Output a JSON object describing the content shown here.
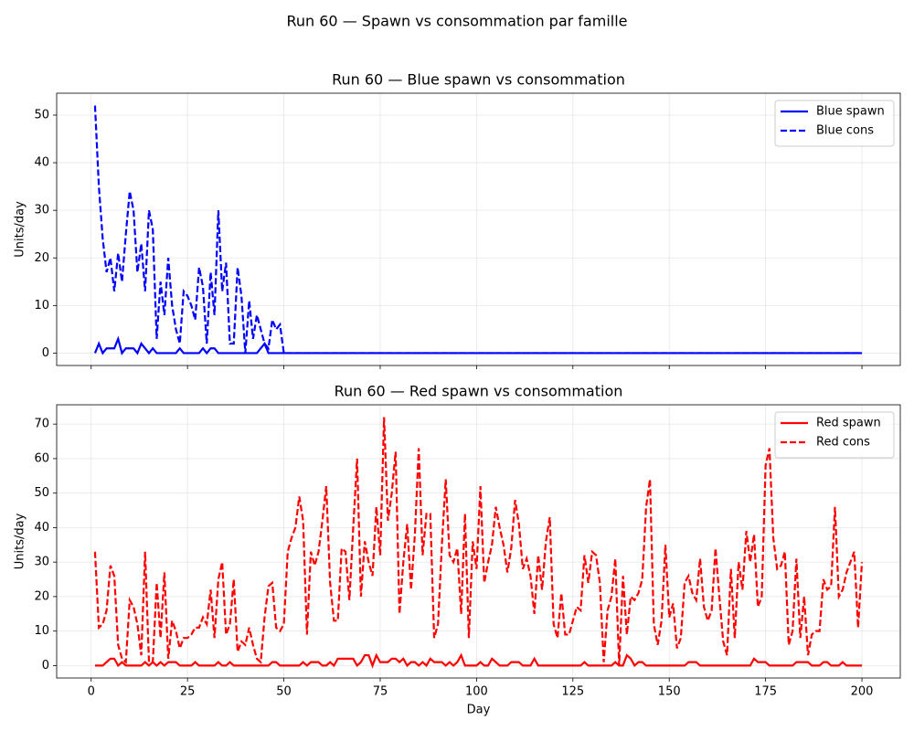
{
  "suptitle": "Run 60 — Spawn vs consommation par famille",
  "chart_data": [
    {
      "type": "line",
      "title": "Run 60 — Blue spawn vs consommation",
      "ylabel": "Units/day",
      "show_xtick_labels": false,
      "x": [
        1,
        2,
        3,
        4,
        5,
        6,
        7,
        8,
        9,
        10,
        11,
        12,
        13,
        14,
        15,
        16,
        17,
        18,
        19,
        20,
        21,
        22,
        23,
        24,
        25,
        26,
        27,
        28,
        29,
        30,
        31,
        32,
        33,
        34,
        35,
        36,
        37,
        38,
        39,
        40,
        41,
        42,
        43,
        44,
        45,
        46,
        47,
        48,
        49,
        50,
        51,
        52,
        53,
        54,
        55,
        56,
        57,
        58,
        59,
        60,
        61,
        62,
        63,
        64,
        65,
        66,
        67,
        68,
        69,
        70,
        71,
        72,
        73,
        74,
        75,
        76,
        77,
        78,
        79,
        80,
        81,
        82,
        83,
        84,
        85,
        86,
        87,
        88,
        89,
        90,
        91,
        92,
        93,
        94,
        95,
        96,
        97,
        98,
        99,
        100,
        101,
        102,
        103,
        104,
        105,
        106,
        107,
        108,
        109,
        110,
        111,
        112,
        113,
        114,
        115,
        116,
        117,
        118,
        119,
        120,
        121,
        122,
        123,
        124,
        125,
        126,
        127,
        128,
        129,
        130,
        131,
        132,
        133,
        134,
        135,
        136,
        137,
        138,
        139,
        140,
        141,
        142,
        143,
        144,
        145,
        146,
        147,
        148,
        149,
        150,
        151,
        152,
        153,
        154,
        155,
        156,
        157,
        158,
        159,
        160,
        161,
        162,
        163,
        164,
        165,
        166,
        167,
        168,
        169,
        170,
        171,
        172,
        173,
        174,
        175,
        176,
        177,
        178,
        179,
        180,
        181,
        182,
        183,
        184,
        185,
        186,
        187,
        188,
        189,
        190,
        191,
        192,
        193,
        194,
        195,
        196,
        197,
        198,
        199,
        200
      ],
      "series": [
        {
          "name": "Blue spawn",
          "color": "#0000ff",
          "linestyle": "solid",
          "values": [
            0,
            2,
            0,
            1,
            1,
            1,
            3,
            0,
            1,
            1,
            1,
            0,
            2,
            1,
            0,
            1,
            0,
            0,
            0,
            0,
            0,
            0,
            1,
            0,
            0,
            0,
            0,
            0,
            1,
            0,
            1,
            1,
            0,
            0,
            0,
            0,
            0,
            0,
            0,
            0,
            0,
            0,
            0,
            1,
            2,
            0,
            0,
            0,
            0,
            0,
            0,
            0,
            0,
            0,
            0,
            0,
            0,
            0,
            0,
            0,
            0,
            0,
            0,
            0,
            0,
            0,
            0,
            0,
            0,
            0,
            0,
            0,
            0,
            0,
            0,
            0,
            0,
            0,
            0,
            0,
            0,
            0,
            0,
            0,
            0,
            0,
            0,
            0,
            0,
            0,
            0,
            0,
            0,
            0,
            0,
            0,
            0,
            0,
            0,
            0,
            0,
            0,
            0,
            0,
            0,
            0,
            0,
            0,
            0,
            0,
            0,
            0,
            0,
            0,
            0,
            0,
            0,
            0,
            0,
            0,
            0,
            0,
            0,
            0,
            0,
            0,
            0,
            0,
            0,
            0,
            0,
            0,
            0,
            0,
            0,
            0,
            0,
            0,
            0,
            0,
            0,
            0,
            0,
            0,
            0,
            0,
            0,
            0,
            0,
            0,
            0,
            0,
            0,
            0,
            0,
            0,
            0,
            0,
            0,
            0,
            0,
            0,
            0,
            0,
            0,
            0,
            0,
            0,
            0,
            0,
            0,
            0,
            0,
            0,
            0,
            0,
            0,
            0,
            0,
            0,
            0,
            0,
            0,
            0,
            0,
            0,
            0,
            0,
            0,
            0,
            0,
            0,
            0,
            0,
            0,
            0,
            0,
            0,
            0,
            0
          ]
        },
        {
          "name": "Blue cons",
          "color": "#0000ff",
          "linestyle": "dashed",
          "values": [
            52,
            35,
            24,
            17,
            20,
            13,
            21,
            15,
            25,
            34,
            30,
            17,
            23,
            13,
            30,
            26,
            3,
            15,
            8,
            20,
            10,
            5,
            2,
            13,
            12,
            10,
            7,
            18,
            14,
            2,
            17,
            8,
            30,
            13,
            19,
            2,
            2,
            18,
            12,
            0,
            11,
            3,
            8,
            5,
            2,
            1,
            7,
            5,
            6,
            0,
            0,
            0,
            0,
            0,
            0,
            0,
            0,
            0,
            0,
            0,
            0,
            0,
            0,
            0,
            0,
            0,
            0,
            0,
            0,
            0,
            0,
            0,
            0,
            0,
            0,
            0,
            0,
            0,
            0,
            0,
            0,
            0,
            0,
            0,
            0,
            0,
            0,
            0,
            0,
            0,
            0,
            0,
            0,
            0,
            0,
            0,
            0,
            0,
            0,
            0,
            0,
            0,
            0,
            0,
            0,
            0,
            0,
            0,
            0,
            0,
            0,
            0,
            0,
            0,
            0,
            0,
            0,
            0,
            0,
            0,
            0,
            0,
            0,
            0,
            0,
            0,
            0,
            0,
            0,
            0,
            0,
            0,
            0,
            0,
            0,
            0,
            0,
            0,
            0,
            0,
            0,
            0,
            0,
            0,
            0,
            0,
            0,
            0,
            0,
            0,
            0,
            0,
            0,
            0,
            0,
            0,
            0,
            0,
            0,
            0,
            0,
            0,
            0,
            0,
            0,
            0,
            0,
            0,
            0,
            0,
            0,
            0,
            0,
            0,
            0,
            0,
            0,
            0,
            0,
            0,
            0,
            0,
            0,
            0,
            0,
            0,
            0,
            0,
            0,
            0,
            0,
            0,
            0,
            0,
            0,
            0,
            0,
            0,
            0,
            0
          ]
        }
      ],
      "xlim": [
        -8.95,
        209.95
      ],
      "xticks": [
        0,
        25,
        50,
        75,
        100,
        125,
        150,
        175,
        200
      ],
      "ylim": [
        -2.6,
        54.6
      ],
      "yticks": [
        0,
        10,
        20,
        30,
        40,
        50
      ],
      "grid": true,
      "legend": "upper right"
    },
    {
      "type": "line",
      "title": "Run 60 — Red spawn vs consommation",
      "ylabel": "Units/day",
      "xlabel": "Day",
      "show_xtick_labels": true,
      "x": [
        1,
        2,
        3,
        4,
        5,
        6,
        7,
        8,
        9,
        10,
        11,
        12,
        13,
        14,
        15,
        16,
        17,
        18,
        19,
        20,
        21,
        22,
        23,
        24,
        25,
        26,
        27,
        28,
        29,
        30,
        31,
        32,
        33,
        34,
        35,
        36,
        37,
        38,
        39,
        40,
        41,
        42,
        43,
        44,
        45,
        46,
        47,
        48,
        49,
        50,
        51,
        52,
        53,
        54,
        55,
        56,
        57,
        58,
        59,
        60,
        61,
        62,
        63,
        64,
        65,
        66,
        67,
        68,
        69,
        70,
        71,
        72,
        73,
        74,
        75,
        76,
        77,
        78,
        79,
        80,
        81,
        82,
        83,
        84,
        85,
        86,
        87,
        88,
        89,
        90,
        91,
        92,
        93,
        94,
        95,
        96,
        97,
        98,
        99,
        100,
        101,
        102,
        103,
        104,
        105,
        106,
        107,
        108,
        109,
        110,
        111,
        112,
        113,
        114,
        115,
        116,
        117,
        118,
        119,
        120,
        121,
        122,
        123,
        124,
        125,
        126,
        127,
        128,
        129,
        130,
        131,
        132,
        133,
        134,
        135,
        136,
        137,
        138,
        139,
        140,
        141,
        142,
        143,
        144,
        145,
        146,
        147,
        148,
        149,
        150,
        151,
        152,
        153,
        154,
        155,
        156,
        157,
        158,
        159,
        160,
        161,
        162,
        163,
        164,
        165,
        166,
        167,
        168,
        169,
        170,
        171,
        172,
        173,
        174,
        175,
        176,
        177,
        178,
        179,
        180,
        181,
        182,
        183,
        184,
        185,
        186,
        187,
        188,
        189,
        190,
        191,
        192,
        193,
        194,
        195,
        196,
        197,
        198,
        199,
        200
      ],
      "series": [
        {
          "name": "Red spawn",
          "color": "#ff0000",
          "linestyle": "solid",
          "values": [
            0,
            0,
            0,
            1,
            2,
            2,
            0,
            1,
            0,
            0,
            0,
            0,
            0,
            1,
            0,
            1,
            0,
            1,
            0,
            1,
            1,
            1,
            0,
            0,
            0,
            0,
            1,
            0,
            0,
            0,
            0,
            0,
            1,
            0,
            0,
            1,
            0,
            0,
            0,
            0,
            0,
            0,
            0,
            0,
            0,
            0,
            1,
            1,
            0,
            0,
            0,
            0,
            0,
            0,
            1,
            0,
            1,
            1,
            1,
            0,
            0,
            1,
            0,
            2,
            2,
            2,
            2,
            2,
            0,
            1,
            3,
            3,
            0,
            3,
            1,
            1,
            1,
            2,
            2,
            1,
            2,
            0,
            1,
            1,
            0,
            1,
            0,
            2,
            1,
            1,
            1,
            0,
            1,
            0,
            1,
            3,
            0,
            0,
            0,
            0,
            1,
            0,
            0,
            2,
            1,
            0,
            0,
            0,
            1,
            1,
            1,
            0,
            0,
            0,
            2,
            0,
            0,
            0,
            0,
            0,
            0,
            0,
            0,
            0,
            0,
            0,
            0,
            1,
            0,
            0,
            0,
            0,
            0,
            0,
            0,
            1,
            0,
            0,
            3,
            2,
            0,
            1,
            1,
            0,
            0,
            0,
            0,
            0,
            0,
            0,
            0,
            0,
            0,
            0,
            1,
            1,
            1,
            0,
            0,
            0,
            0,
            0,
            0,
            0,
            0,
            0,
            0,
            0,
            0,
            0,
            0,
            2,
            1,
            1,
            1,
            0,
            0,
            0,
            0,
            0,
            0,
            0,
            1,
            1,
            1,
            1,
            0,
            0,
            0,
            1,
            1,
            0,
            0,
            0,
            1,
            0,
            0,
            0,
            0,
            0
          ]
        },
        {
          "name": "Red cons",
          "color": "#ff0000",
          "linestyle": "dashed",
          "values": [
            33,
            11,
            12,
            16,
            29,
            26,
            6,
            2,
            1,
            19,
            17,
            12,
            3,
            33,
            1,
            1,
            24,
            8,
            27,
            2,
            13,
            10,
            5,
            8,
            8,
            9,
            11,
            11,
            14,
            12,
            22,
            8,
            25,
            30,
            9,
            12,
            25,
            4,
            7,
            6,
            11,
            6,
            2,
            1,
            14,
            23,
            24,
            11,
            10,
            12,
            33,
            37,
            40,
            49,
            42,
            9,
            33,
            29,
            33,
            42,
            52,
            24,
            13,
            13,
            34,
            33,
            19,
            40,
            60,
            20,
            36,
            30,
            26,
            46,
            32,
            72,
            42,
            50,
            62,
            15,
            30,
            41,
            22,
            38,
            63,
            32,
            44,
            44,
            8,
            12,
            35,
            54,
            32,
            30,
            34,
            15,
            44,
            8,
            36,
            28,
            52,
            24,
            30,
            35,
            46,
            40,
            35,
            27,
            34,
            48,
            41,
            28,
            31,
            26,
            15,
            32,
            22,
            36,
            43,
            12,
            8,
            21,
            9,
            9,
            13,
            17,
            16,
            32,
            24,
            33,
            32,
            24,
            1,
            16,
            20,
            31,
            0,
            26,
            9,
            20,
            19,
            21,
            25,
            46,
            54,
            12,
            6,
            13,
            35,
            14,
            18,
            5,
            8,
            24,
            26,
            21,
            19,
            31,
            17,
            13,
            16,
            34,
            20,
            7,
            3,
            28,
            8,
            30,
            22,
            39,
            30,
            38,
            17,
            20,
            58,
            63,
            37,
            28,
            29,
            33,
            6,
            10,
            31,
            8,
            20,
            3,
            9,
            10,
            10,
            25,
            22,
            23,
            46,
            20,
            22,
            27,
            30,
            33,
            11,
            30
          ]
        }
      ],
      "xlim": [
        -8.95,
        209.95
      ],
      "xticks": [
        0,
        25,
        50,
        75,
        100,
        125,
        150,
        175,
        200
      ],
      "ylim": [
        -3.6,
        75.6
      ],
      "yticks": [
        0,
        10,
        20,
        30,
        40,
        50,
        60,
        70
      ],
      "grid": true,
      "legend": "upper right"
    }
  ]
}
